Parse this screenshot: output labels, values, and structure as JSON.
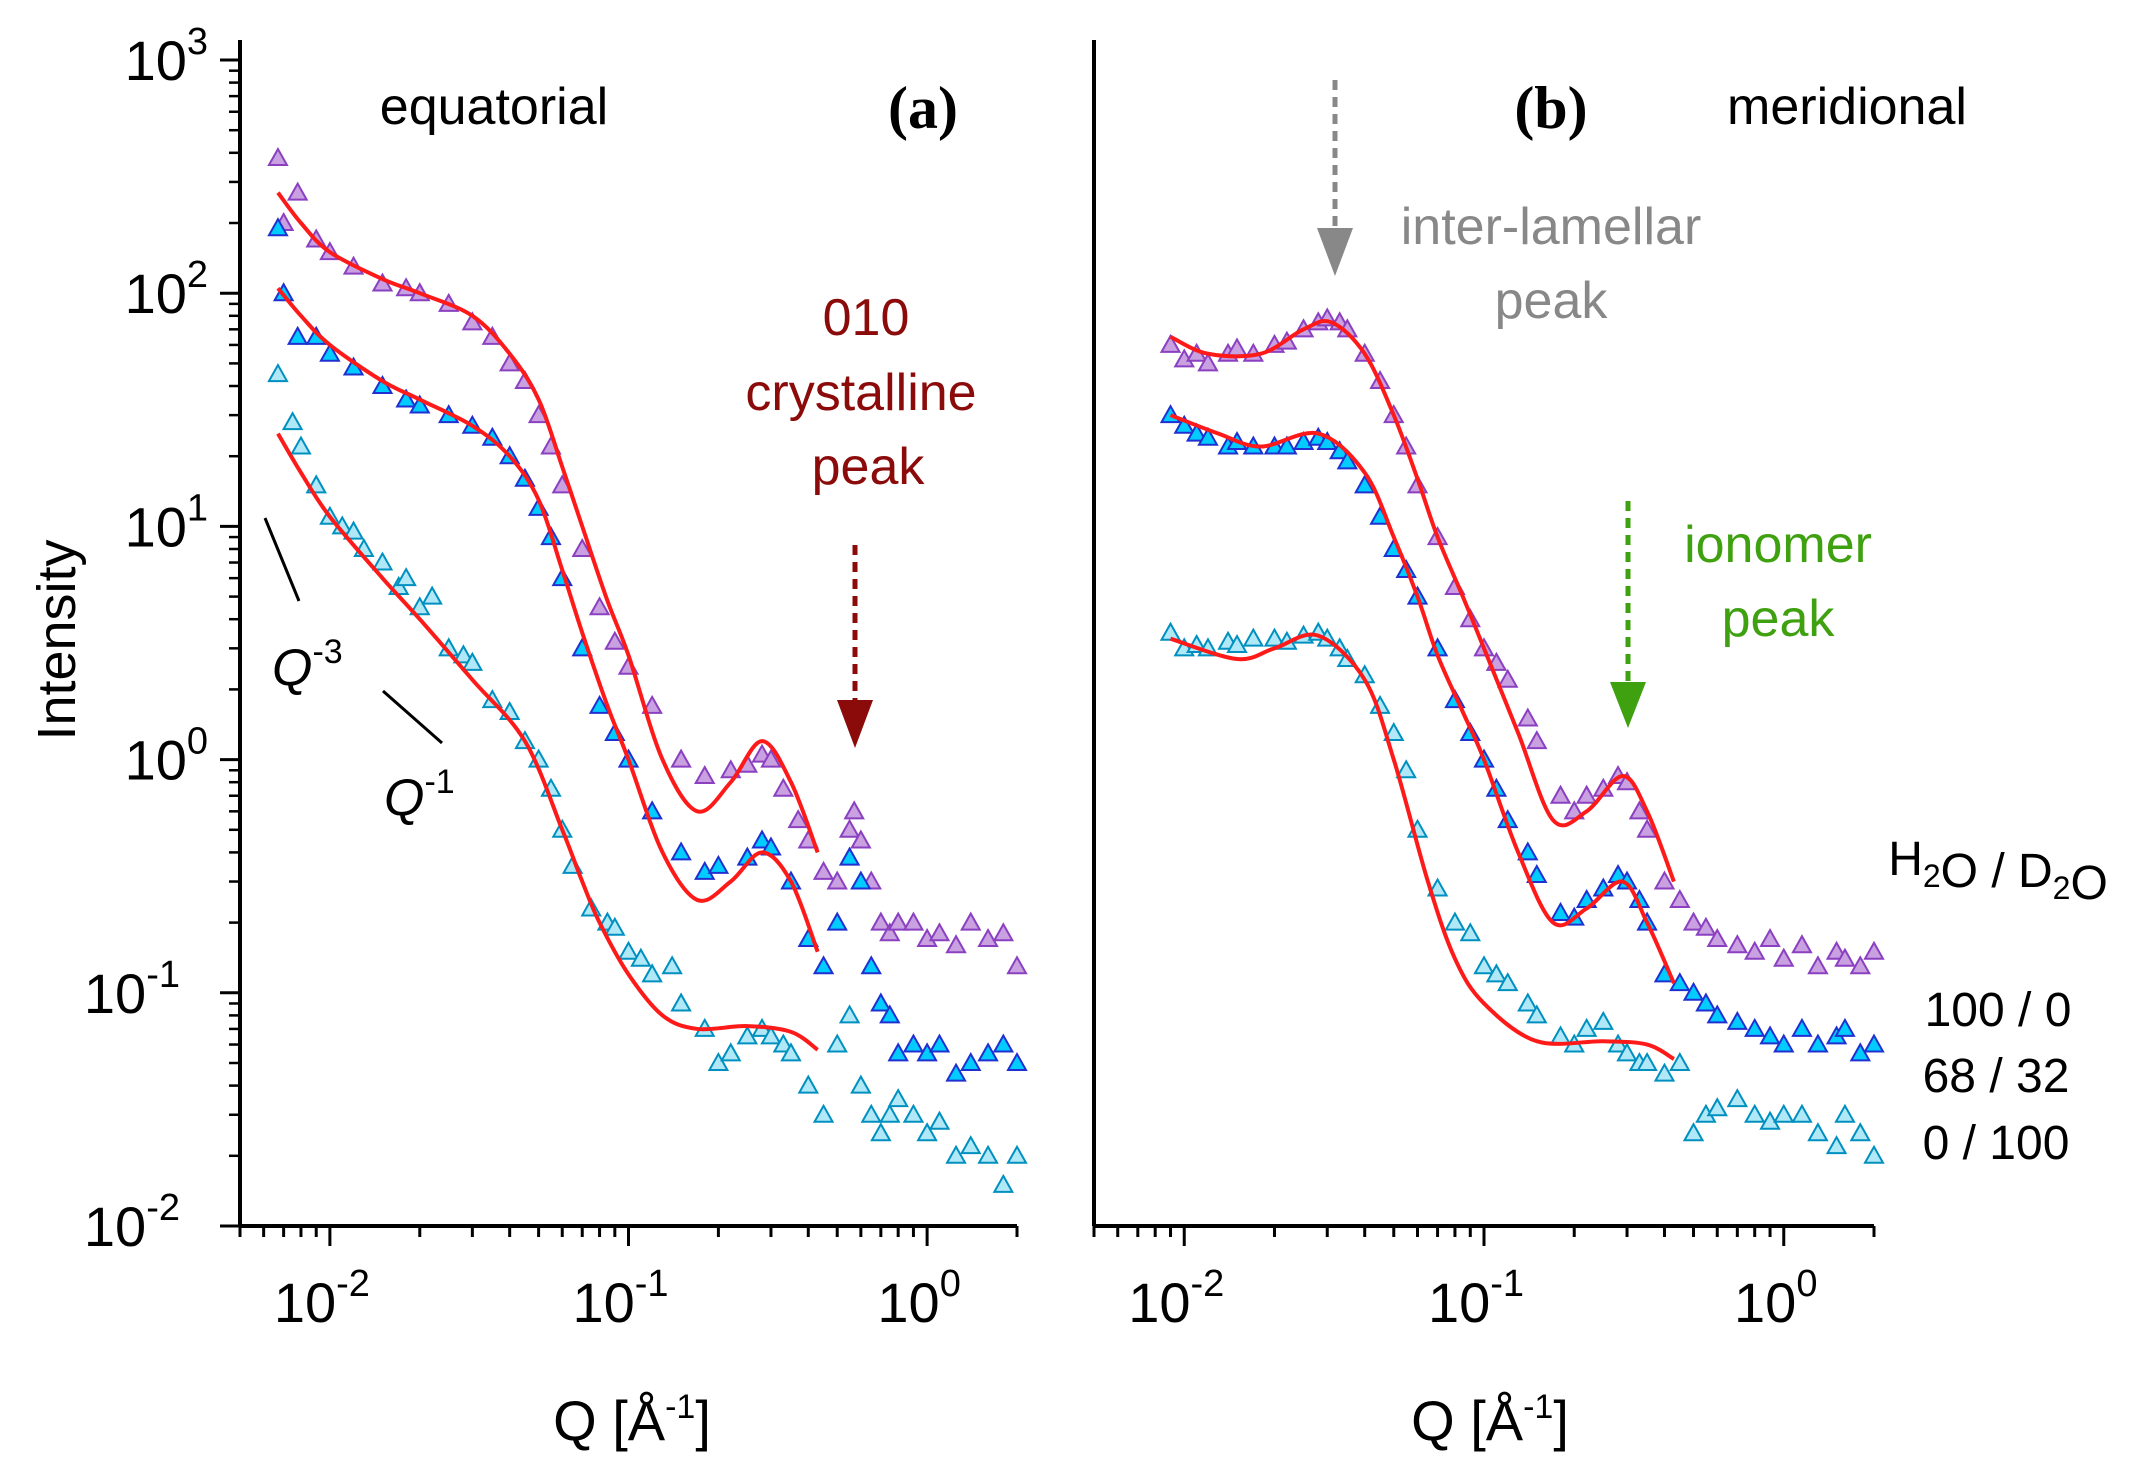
{
  "chart_data": [
    {
      "panel": "a",
      "type": "scatter",
      "title": "equatorial",
      "panel_label": "(a)",
      "xlabel": "Q [Å-1]",
      "ylabel": "Intensity",
      "xscale": "log",
      "yscale": "log",
      "xlim": [
        0.005,
        2
      ],
      "ylim": [
        0.01,
        1000
      ],
      "xticks": [
        "10-2",
        "10-1",
        "100"
      ],
      "yticks": [
        "10-2",
        "10-1",
        "100",
        "101",
        "102",
        "103"
      ],
      "annotations": {
        "peak_label": [
          "010",
          "crystalline",
          "peak"
        ],
        "peak_q": 0.57,
        "slope1": "Q-3",
        "slope2": "Q-1"
      },
      "series": [
        {
          "name": "100 / 0",
          "color": "#8a40c0",
          "fill": "#c9a0e0",
          "q": [
            0.0067,
            0.007,
            0.0078,
            0.009,
            0.01,
            0.012,
            0.015,
            0.018,
            0.02,
            0.025,
            0.03,
            0.035,
            0.04,
            0.045,
            0.05,
            0.055,
            0.06,
            0.07,
            0.08,
            0.09,
            0.1,
            0.12,
            0.15,
            0.18,
            0.22,
            0.25,
            0.28,
            0.3,
            0.33,
            0.37,
            0.4,
            0.45,
            0.5,
            0.55,
            0.57,
            0.6,
            0.65,
            0.7,
            0.75,
            0.8,
            0.9,
            1.0,
            1.1,
            1.25,
            1.4,
            1.6,
            1.8,
            2.0
          ],
          "I": [
            380,
            200,
            270,
            170,
            150,
            130,
            110,
            105,
            100,
            90,
            75,
            65,
            50,
            42,
            30,
            22,
            15,
            8,
            4.5,
            3.2,
            2.5,
            1.7,
            1.0,
            0.85,
            0.9,
            0.95,
            1.05,
            1.0,
            0.75,
            0.55,
            0.45,
            0.33,
            0.3,
            0.5,
            0.6,
            0.45,
            0.3,
            0.2,
            0.18,
            0.2,
            0.2,
            0.17,
            0.18,
            0.16,
            0.2,
            0.17,
            0.18,
            0.13
          ],
          "fit_q": [
            0.0067,
            0.008,
            0.01,
            0.015,
            0.02,
            0.03,
            0.04,
            0.05,
            0.06,
            0.07,
            0.085,
            0.1,
            0.13,
            0.17,
            0.22,
            0.28,
            0.35,
            0.43
          ],
          "fit_I": [
            270,
            200,
            150,
            115,
            100,
            80,
            55,
            35,
            18,
            10,
            4.8,
            2.8,
            1.0,
            0.6,
            0.8,
            1.2,
            0.8,
            0.4
          ]
        },
        {
          "name": "68 / 32",
          "color": "#2030d0",
          "fill": "#00ccff",
          "q": [
            0.0067,
            0.007,
            0.0078,
            0.009,
            0.01,
            0.012,
            0.015,
            0.018,
            0.02,
            0.025,
            0.03,
            0.035,
            0.04,
            0.045,
            0.05,
            0.055,
            0.06,
            0.07,
            0.08,
            0.09,
            0.1,
            0.12,
            0.15,
            0.18,
            0.2,
            0.25,
            0.28,
            0.3,
            0.35,
            0.4,
            0.45,
            0.5,
            0.55,
            0.6,
            0.65,
            0.7,
            0.75,
            0.8,
            0.9,
            1.0,
            1.1,
            1.25,
            1.4,
            1.6,
            1.8,
            2.0
          ],
          "I": [
            190,
            100,
            65,
            65,
            55,
            48,
            40,
            35,
            33,
            30,
            27,
            24,
            20,
            16,
            12,
            9,
            6,
            3,
            1.7,
            1.3,
            1.0,
            0.6,
            0.4,
            0.33,
            0.35,
            0.38,
            0.45,
            0.42,
            0.3,
            0.17,
            0.13,
            0.2,
            0.38,
            0.3,
            0.13,
            0.09,
            0.08,
            0.055,
            0.06,
            0.055,
            0.06,
            0.045,
            0.05,
            0.055,
            0.06,
            0.05
          ],
          "fit_q": [
            0.0067,
            0.008,
            0.01,
            0.015,
            0.02,
            0.03,
            0.04,
            0.05,
            0.06,
            0.07,
            0.085,
            0.1,
            0.13,
            0.17,
            0.22,
            0.28,
            0.35,
            0.43
          ],
          "fit_I": [
            105,
            80,
            60,
            42,
            35,
            27,
            20,
            13,
            6.5,
            3.5,
            1.7,
            1.0,
            0.4,
            0.25,
            0.3,
            0.4,
            0.3,
            0.15
          ]
        },
        {
          "name": "0 / 100",
          "color": "#0090c0",
          "fill": "#b0e8f8",
          "q": [
            0.0067,
            0.0075,
            0.008,
            0.009,
            0.01,
            0.011,
            0.012,
            0.013,
            0.015,
            0.017,
            0.018,
            0.02,
            0.022,
            0.025,
            0.028,
            0.03,
            0.035,
            0.04,
            0.045,
            0.05,
            0.055,
            0.06,
            0.065,
            0.075,
            0.085,
            0.09,
            0.1,
            0.11,
            0.12,
            0.14,
            0.15,
            0.18,
            0.2,
            0.22,
            0.25,
            0.28,
            0.3,
            0.33,
            0.35,
            0.4,
            0.45,
            0.5,
            0.55,
            0.6,
            0.65,
            0.7,
            0.75,
            0.8,
            0.9,
            1.0,
            1.1,
            1.25,
            1.4,
            1.6,
            1.8,
            2.0
          ],
          "I": [
            45,
            28,
            22,
            15,
            11,
            10,
            9.5,
            8,
            7,
            5.5,
            6,
            4.5,
            5,
            3,
            2.8,
            2.6,
            1.8,
            1.6,
            1.2,
            1.0,
            0.75,
            0.5,
            0.35,
            0.23,
            0.2,
            0.19,
            0.15,
            0.14,
            0.12,
            0.13,
            0.09,
            0.07,
            0.05,
            0.055,
            0.065,
            0.07,
            0.065,
            0.06,
            0.055,
            0.04,
            0.03,
            0.06,
            0.08,
            0.04,
            0.03,
            0.025,
            0.03,
            0.035,
            0.03,
            0.025,
            0.028,
            0.02,
            0.022,
            0.02,
            0.015,
            0.02
          ],
          "fit_q": [
            0.0067,
            0.008,
            0.01,
            0.015,
            0.02,
            0.03,
            0.045,
            0.06,
            0.07,
            0.08,
            0.1,
            0.13,
            0.17,
            0.25,
            0.35,
            0.43
          ],
          "fit_I": [
            25,
            17,
            11,
            6,
            4,
            2.2,
            1.2,
            0.5,
            0.3,
            0.2,
            0.12,
            0.08,
            0.07,
            0.072,
            0.068,
            0.057
          ]
        }
      ]
    },
    {
      "panel": "b",
      "type": "scatter",
      "title": "meridional",
      "panel_label": "(b)",
      "xlabel": "Q [Å-1]",
      "xscale": "log",
      "yscale": "log",
      "xlim": [
        0.005,
        2
      ],
      "ylim": [
        0.01,
        1000
      ],
      "xticks": [
        "10-2",
        "10-1",
        "100"
      ],
      "annotations": {
        "interlamellar_label": [
          "inter-lamellar",
          "peak"
        ],
        "interlamellar_q": 0.031,
        "ionomer_label": [
          "ionomer",
          "peak"
        ],
        "ionomer_q": 0.3
      },
      "legend": {
        "title": "H2O / D2O",
        "entries": [
          "100 / 0",
          "68 / 32",
          "0 / 100"
        ],
        "placement": "right"
      },
      "series": [
        {
          "name": "100 / 0",
          "color": "#8a40c0",
          "fill": "#c9a0e0",
          "q": [
            0.009,
            0.01,
            0.011,
            0.012,
            0.014,
            0.015,
            0.017,
            0.02,
            0.022,
            0.025,
            0.028,
            0.03,
            0.033,
            0.035,
            0.04,
            0.045,
            0.05,
            0.055,
            0.06,
            0.07,
            0.08,
            0.09,
            0.1,
            0.11,
            0.12,
            0.14,
            0.15,
            0.18,
            0.2,
            0.22,
            0.25,
            0.28,
            0.3,
            0.33,
            0.35,
            0.4,
            0.45,
            0.5,
            0.55,
            0.6,
            0.7,
            0.8,
            0.9,
            1.0,
            1.15,
            1.3,
            1.5,
            1.6,
            1.8,
            2.0
          ],
          "I": [
            60,
            52,
            55,
            50,
            55,
            58,
            55,
            60,
            62,
            70,
            75,
            78,
            75,
            70,
            55,
            42,
            30,
            22,
            15,
            9,
            5.5,
            4,
            3,
            2.6,
            2.2,
            1.5,
            1.2,
            0.7,
            0.6,
            0.7,
            0.75,
            0.85,
            0.8,
            0.6,
            0.5,
            0.3,
            0.25,
            0.2,
            0.19,
            0.17,
            0.16,
            0.15,
            0.17,
            0.14,
            0.16,
            0.13,
            0.15,
            0.14,
            0.13,
            0.15
          ],
          "fit_q": [
            0.009,
            0.012,
            0.018,
            0.025,
            0.031,
            0.04,
            0.05,
            0.06,
            0.07,
            0.085,
            0.1,
            0.13,
            0.17,
            0.22,
            0.29,
            0.35,
            0.43
          ],
          "fit_I": [
            65,
            55,
            55,
            70,
            75,
            55,
            30,
            16,
            9,
            5,
            3,
            1.3,
            0.55,
            0.6,
            0.85,
            0.6,
            0.3
          ]
        },
        {
          "name": "68 / 32",
          "color": "#2030d0",
          "fill": "#00ccff",
          "q": [
            0.009,
            0.01,
            0.011,
            0.012,
            0.014,
            0.015,
            0.017,
            0.02,
            0.022,
            0.025,
            0.028,
            0.03,
            0.033,
            0.035,
            0.04,
            0.045,
            0.05,
            0.055,
            0.06,
            0.07,
            0.08,
            0.09,
            0.1,
            0.11,
            0.12,
            0.14,
            0.15,
            0.18,
            0.2,
            0.22,
            0.25,
            0.28,
            0.3,
            0.33,
            0.35,
            0.4,
            0.45,
            0.5,
            0.55,
            0.6,
            0.7,
            0.8,
            0.9,
            1.0,
            1.15,
            1.3,
            1.5,
            1.6,
            1.8,
            2.0
          ],
          "I": [
            30,
            27,
            25,
            24,
            22,
            23,
            22,
            22,
            22,
            23,
            24,
            23,
            21,
            19,
            15,
            11,
            8,
            6.5,
            5,
            3,
            1.8,
            1.3,
            1.0,
            0.75,
            0.55,
            0.4,
            0.32,
            0.22,
            0.21,
            0.25,
            0.28,
            0.32,
            0.3,
            0.25,
            0.2,
            0.12,
            0.11,
            0.1,
            0.09,
            0.08,
            0.075,
            0.07,
            0.065,
            0.06,
            0.07,
            0.06,
            0.065,
            0.07,
            0.055,
            0.06
          ],
          "fit_q": [
            0.009,
            0.013,
            0.018,
            0.028,
            0.04,
            0.05,
            0.06,
            0.07,
            0.085,
            0.1,
            0.13,
            0.17,
            0.22,
            0.29,
            0.35,
            0.43
          ],
          "fit_I": [
            30,
            25,
            22,
            25,
            17,
            9,
            5,
            2.8,
            1.6,
            1.0,
            0.4,
            0.2,
            0.23,
            0.3,
            0.2,
            0.11
          ]
        },
        {
          "name": "0 / 100",
          "color": "#0090c0",
          "fill": "#b0e8f8",
          "q": [
            0.009,
            0.01,
            0.011,
            0.012,
            0.014,
            0.015,
            0.017,
            0.02,
            0.022,
            0.025,
            0.028,
            0.03,
            0.033,
            0.035,
            0.04,
            0.045,
            0.05,
            0.055,
            0.06,
            0.07,
            0.08,
            0.09,
            0.1,
            0.11,
            0.12,
            0.14,
            0.15,
            0.18,
            0.2,
            0.22,
            0.25,
            0.28,
            0.3,
            0.33,
            0.35,
            0.4,
            0.45,
            0.5,
            0.55,
            0.6,
            0.7,
            0.8,
            0.9,
            1.0,
            1.15,
            1.3,
            1.5,
            1.6,
            1.8,
            2.0
          ],
          "I": [
            3.5,
            3.0,
            3.1,
            3.0,
            3.2,
            3.1,
            3.3,
            3.3,
            3.2,
            3.4,
            3.5,
            3.3,
            3.0,
            2.7,
            2.3,
            1.7,
            1.3,
            0.9,
            0.5,
            0.28,
            0.2,
            0.18,
            0.13,
            0.12,
            0.11,
            0.09,
            0.08,
            0.065,
            0.06,
            0.07,
            0.075,
            0.06,
            0.055,
            0.05,
            0.05,
            0.045,
            0.05,
            0.025,
            0.03,
            0.032,
            0.035,
            0.03,
            0.028,
            0.03,
            0.03,
            0.025,
            0.022,
            0.03,
            0.025,
            0.02
          ],
          "fit_q": [
            0.009,
            0.015,
            0.02,
            0.028,
            0.04,
            0.05,
            0.065,
            0.08,
            0.1,
            0.15,
            0.25,
            0.35,
            0.43
          ],
          "fit_I": [
            3.3,
            2.7,
            3.0,
            3.4,
            2.2,
            1.0,
            0.3,
            0.14,
            0.09,
            0.062,
            0.062,
            0.06,
            0.052
          ]
        }
      ]
    }
  ]
}
